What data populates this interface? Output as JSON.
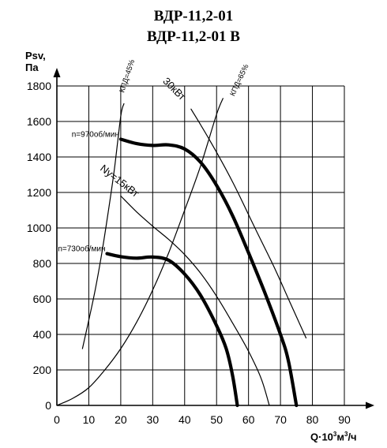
{
  "chart_data": {
    "type": "line",
    "title": [
      "ВДР-11,2-01",
      "ВДР-11,2-01 В"
    ],
    "ylabel": [
      "Psv,",
      "Па"
    ],
    "xlabel": {
      "base": "Q·10",
      "exp1": "3",
      "mid": "м",
      "exp2": "3",
      "tail": "/ч"
    },
    "xlim": [
      0,
      90
    ],
    "ylim": [
      0,
      1800
    ],
    "x_ticks": [
      0,
      10,
      20,
      30,
      40,
      50,
      60,
      70,
      80,
      90
    ],
    "y_ticks": [
      0,
      200,
      400,
      600,
      800,
      1000,
      1200,
      1400,
      1600,
      1800
    ],
    "grid": true,
    "series": [
      {
        "name": "n=970об/мин",
        "style": "thick",
        "points": [
          [
            20,
            1500
          ],
          [
            25,
            1475
          ],
          [
            30,
            1465
          ],
          [
            35,
            1468
          ],
          [
            40,
            1445
          ],
          [
            45,
            1370
          ],
          [
            50,
            1240
          ],
          [
            55,
            1070
          ],
          [
            60,
            860
          ],
          [
            65,
            640
          ],
          [
            70,
            400
          ],
          [
            72.5,
            250
          ],
          [
            75,
            0
          ]
        ]
      },
      {
        "name": "n=730об/мин",
        "style": "thick",
        "points": [
          [
            15.7,
            855
          ],
          [
            20,
            838
          ],
          [
            25,
            830
          ],
          [
            30,
            836
          ],
          [
            35,
            818
          ],
          [
            40,
            740
          ],
          [
            45,
            620
          ],
          [
            50,
            450
          ],
          [
            53,
            320
          ],
          [
            55,
            170
          ],
          [
            56.5,
            0
          ]
        ]
      },
      {
        "name": "Ny=15кВт",
        "style": "thin",
        "points": [
          [
            20,
            1180
          ],
          [
            25,
            1090
          ],
          [
            30,
            1010
          ],
          [
            35,
            935
          ],
          [
            40,
            850
          ],
          [
            45,
            745
          ],
          [
            50,
            615
          ],
          [
            55,
            465
          ],
          [
            60,
            305
          ],
          [
            64,
            150
          ],
          [
            66.5,
            0
          ]
        ]
      },
      {
        "name": "30кВт",
        "style": "thin",
        "points": [
          [
            42,
            1670
          ],
          [
            48,
            1490
          ],
          [
            55,
            1260
          ],
          [
            62,
            1000
          ],
          [
            68,
            780
          ],
          [
            73,
            580
          ],
          [
            78,
            380
          ]
        ]
      },
      {
        "name": "КПД=45%",
        "style": "thin",
        "points": [
          [
            8,
            320
          ],
          [
            10,
            480
          ],
          [
            12,
            650
          ],
          [
            14,
            850
          ],
          [
            16,
            1080
          ],
          [
            18,
            1330
          ],
          [
            20,
            1630
          ],
          [
            21,
            1700
          ]
        ]
      },
      {
        "name": "КПД=65%",
        "style": "thin",
        "points": [
          [
            0,
            0
          ],
          [
            5,
            40
          ],
          [
            10,
            100
          ],
          [
            15,
            200
          ],
          [
            20,
            320
          ],
          [
            25,
            470
          ],
          [
            30,
            650
          ],
          [
            35,
            860
          ],
          [
            40,
            1100
          ],
          [
            45,
            1350
          ],
          [
            50,
            1640
          ],
          [
            52,
            1730
          ]
        ]
      }
    ],
    "annotations": [
      {
        "text": "n=970об/мин",
        "x": 20,
        "y": 1500,
        "rotate": 0
      },
      {
        "text": "n=730об/мин",
        "x": 15.7,
        "y": 855,
        "rotate": 0
      },
      {
        "text": "Ny=15кВт",
        "x": 19,
        "y": 1250,
        "rotate": 38
      },
      {
        "text": "30кВт",
        "x": 36,
        "y": 1770,
        "rotate": 45
      },
      {
        "text": "КПД=45%",
        "x": 21,
        "y": 1760,
        "rotate": -72
      },
      {
        "text": "КПД=65%",
        "x": 55.5,
        "y": 1740,
        "rotate": -65
      }
    ]
  }
}
